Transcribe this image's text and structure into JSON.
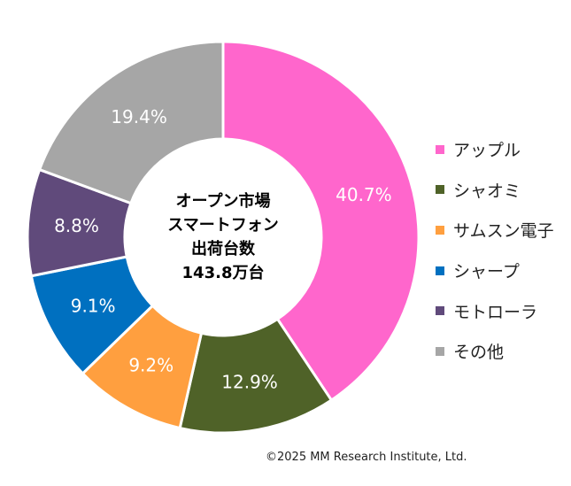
{
  "chart_data": {
    "type": "pie",
    "donut": true,
    "center_label": [
      "オープン市場",
      "スマートフォン",
      "出荷台数",
      "143.8万台"
    ],
    "categories": [
      "アップル",
      "シャオミ",
      "サムスン電子",
      "シャープ",
      "モトローラ",
      "その他"
    ],
    "values": [
      40.7,
      12.9,
      9.2,
      9.1,
      8.8,
      19.4
    ],
    "labels": [
      "40.7%",
      "12.9%",
      "9.2%",
      "9.1%",
      "8.8%",
      "19.4%"
    ],
    "colors": [
      "#FF66CC",
      "#4F6228",
      "#FF9F3F",
      "#0070C0",
      "#604A7B",
      "#A6A6A6"
    ],
    "legend_position": "right"
  },
  "copyright": "©2025 MM Research Institute, Ltd."
}
